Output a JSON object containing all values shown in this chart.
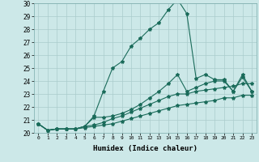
{
  "xlabel": "Humidex (Indice chaleur)",
  "bg_color": "#cce8e8",
  "grid_color": "#aacccc",
  "line_color": "#1a6b5a",
  "xlim": [
    -0.5,
    23.5
  ],
  "ylim": [
    20,
    30
  ],
  "xticks": [
    0,
    1,
    2,
    3,
    4,
    5,
    6,
    7,
    8,
    9,
    10,
    11,
    12,
    13,
    14,
    15,
    16,
    17,
    18,
    19,
    20,
    21,
    22,
    23
  ],
  "yticks": [
    20,
    21,
    22,
    23,
    24,
    25,
    26,
    27,
    28,
    29,
    30
  ],
  "series": [
    [
      20.7,
      20.2,
      20.3,
      20.3,
      20.3,
      20.5,
      21.3,
      23.2,
      25.0,
      25.5,
      26.7,
      27.3,
      28.0,
      28.5,
      29.5,
      30.3,
      29.2,
      24.2,
      24.5,
      24.1,
      24.1,
      23.2,
      24.5,
      23.2
    ],
    [
      20.7,
      20.2,
      20.3,
      20.3,
      20.3,
      20.5,
      21.2,
      21.2,
      21.3,
      21.5,
      21.8,
      22.2,
      22.7,
      23.2,
      23.8,
      24.5,
      23.2,
      23.5,
      23.8,
      24.0,
      24.0,
      23.2,
      24.3,
      23.2
    ],
    [
      20.7,
      20.2,
      20.3,
      20.3,
      20.3,
      20.5,
      20.6,
      20.8,
      21.1,
      21.3,
      21.6,
      21.9,
      22.2,
      22.5,
      22.8,
      23.0,
      23.0,
      23.2,
      23.3,
      23.4,
      23.5,
      23.6,
      23.8,
      23.8
    ],
    [
      20.7,
      20.2,
      20.3,
      20.3,
      20.3,
      20.4,
      20.5,
      20.6,
      20.7,
      20.9,
      21.1,
      21.3,
      21.5,
      21.7,
      21.9,
      22.1,
      22.2,
      22.3,
      22.4,
      22.5,
      22.7,
      22.7,
      22.9,
      22.9
    ]
  ]
}
